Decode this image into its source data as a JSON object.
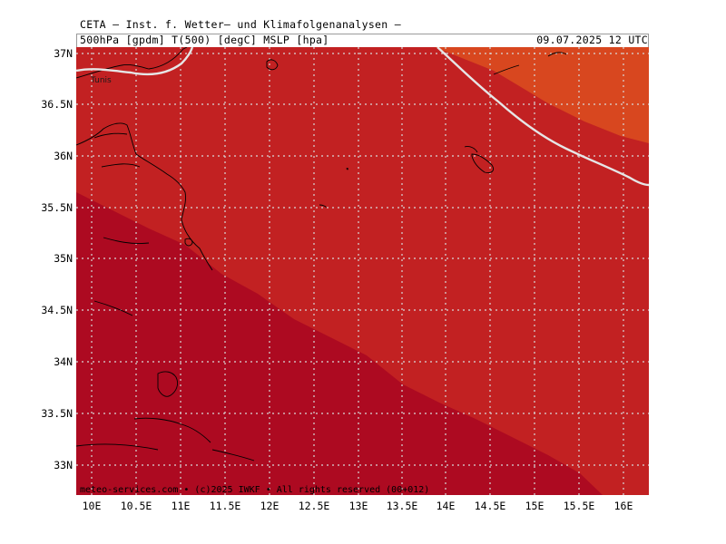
{
  "header": {
    "title_line1": "CETA – Inst. f. Wetter– und Klimafolgenanalysen –",
    "title_line2": "500hPa [gpdm] T(500) [degC] MSLP [hpa]",
    "valid_time": "09.07.2025 12 UTC"
  },
  "footer": {
    "credit": "meteo-services.com • (c)2025 IWKF • All rights reserved (00+012)"
  },
  "map": {
    "place_labels": [
      "Tunis"
    ],
    "lat_labels": [
      "37N",
      "36.5N",
      "36N",
      "35.5N",
      "35N",
      "34.5N",
      "34N",
      "33.5N",
      "33N"
    ],
    "lon_labels": [
      "10E",
      "10.5E",
      "11E",
      "11.5E",
      "12E",
      "12.5E",
      "13E",
      "13.5E",
      "14E",
      "14.5E",
      "15E",
      "15.5E",
      "16E"
    ],
    "colors": {
      "band_dark": "#ad0a21",
      "band_mid": "#c22122",
      "band_warm": "#d8471f",
      "contour_line": "#e6e6e6",
      "coast_line": "#000000",
      "grid_line": "#d8d8d8"
    }
  }
}
